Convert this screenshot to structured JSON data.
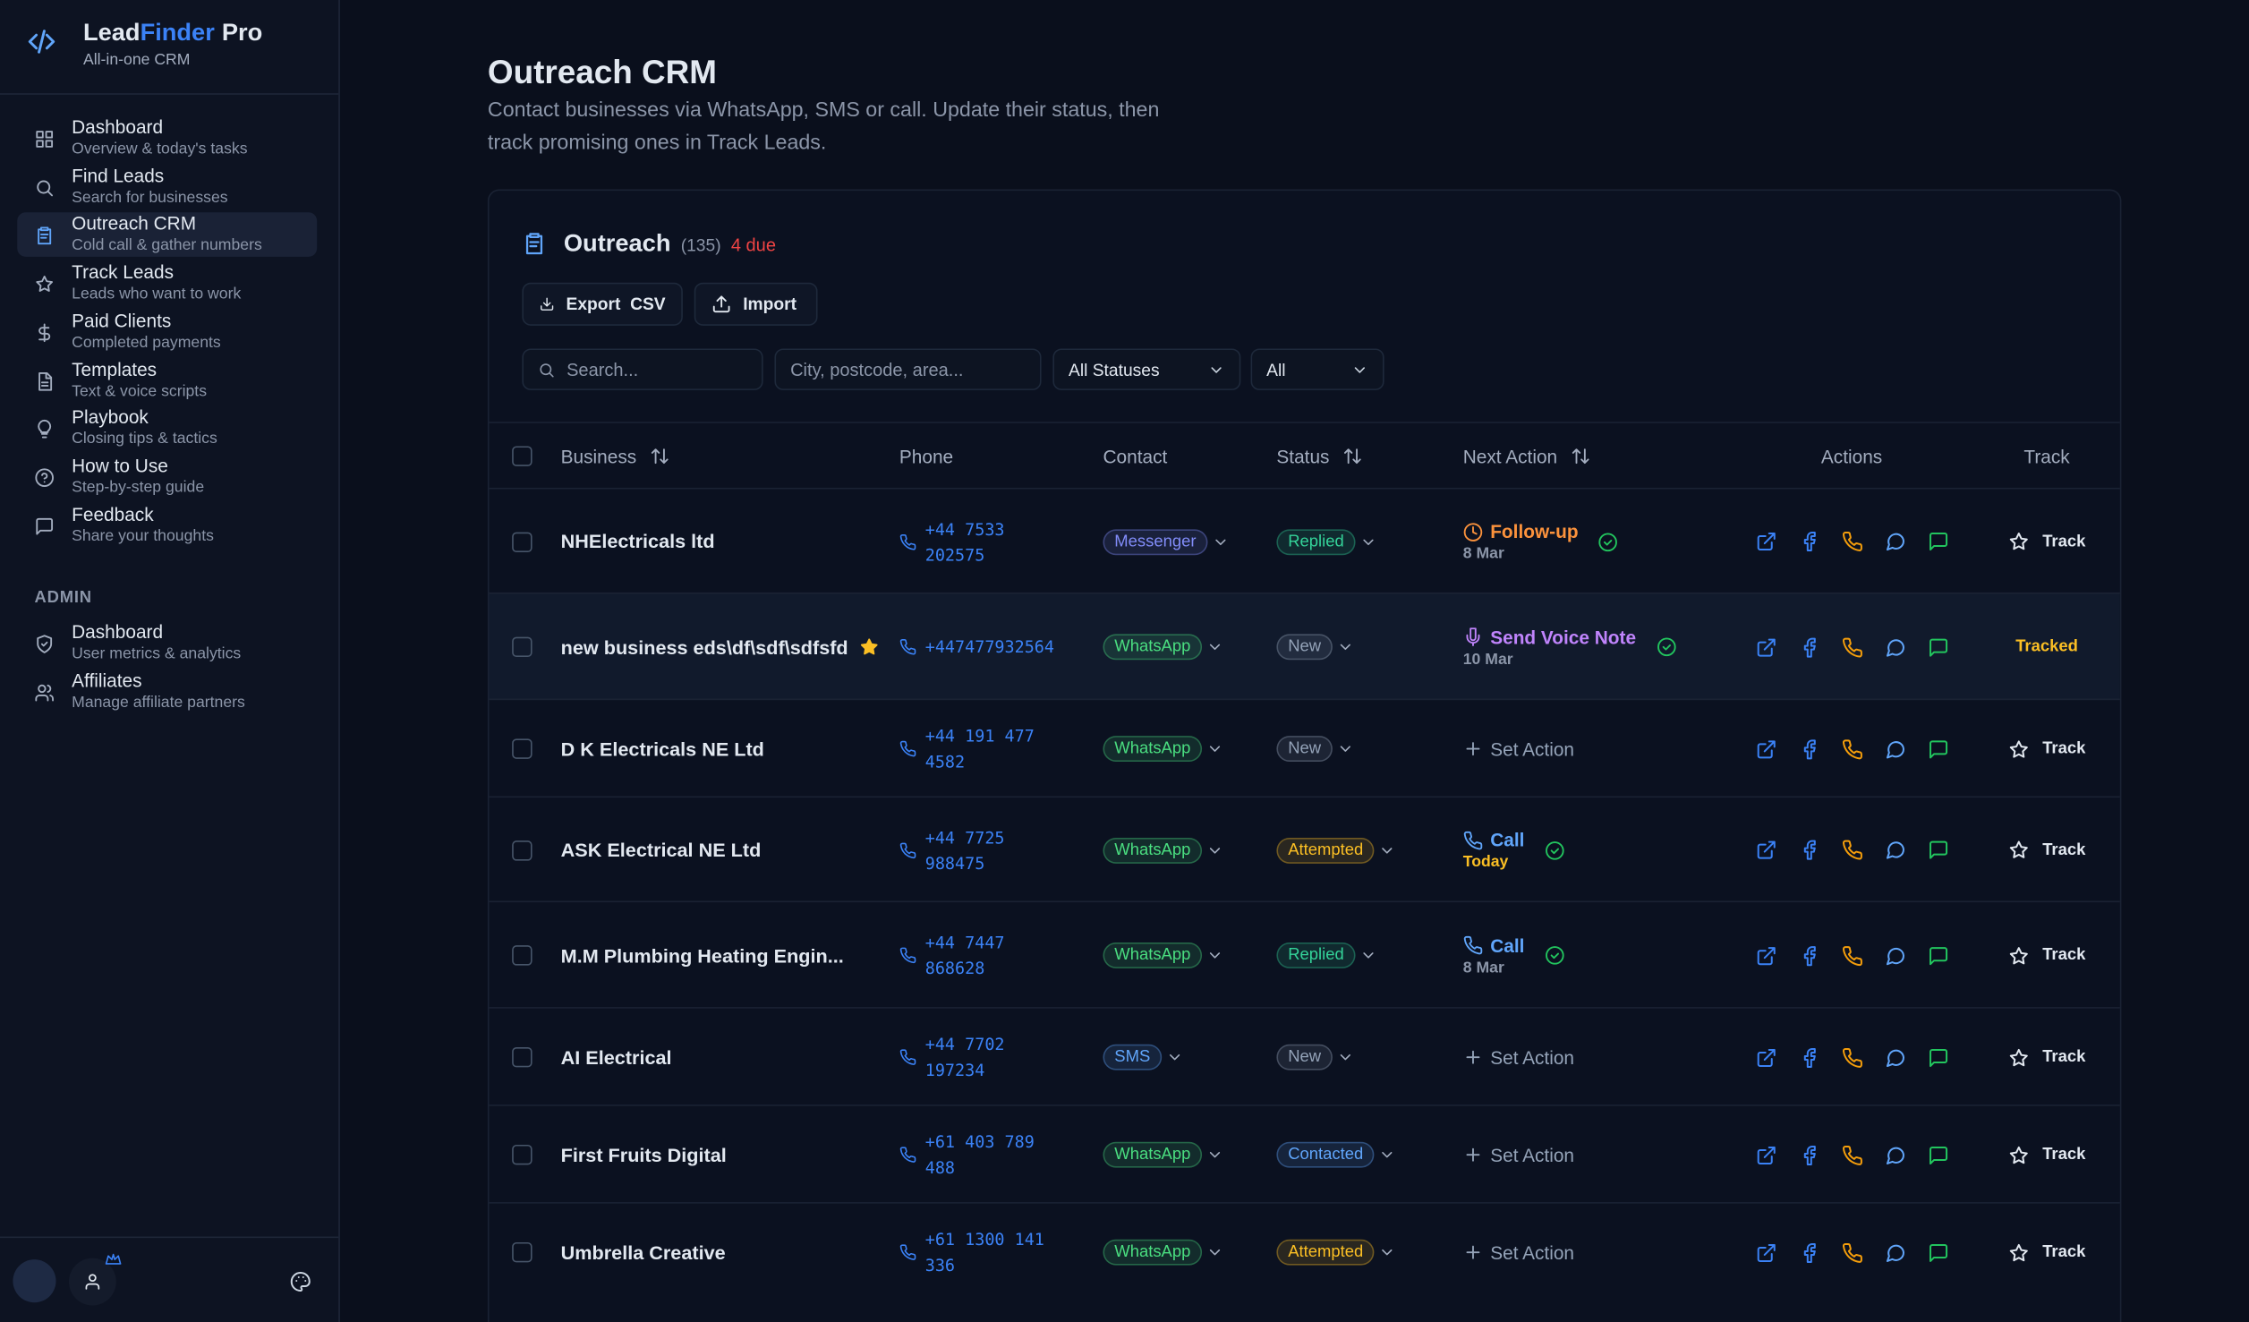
{
  "sidebar": {
    "brand": {
      "lead": "Lead",
      "finder": "Finder",
      "pro": "Pro",
      "tagline": "All-in-one CRM"
    },
    "nav": [
      {
        "label": "Dashboard",
        "sub": "Overview & today's tasks"
      },
      {
        "label": "Find Leads",
        "sub": "Search for businesses"
      },
      {
        "label": "Outreach CRM",
        "sub": "Cold call & gather numbers",
        "active": true
      },
      {
        "label": "Track Leads",
        "sub": "Leads who want to work"
      },
      {
        "label": "Paid Clients",
        "sub": "Completed payments"
      },
      {
        "label": "Templates",
        "sub": "Text & voice scripts"
      },
      {
        "label": "Playbook",
        "sub": "Closing tips & tactics"
      },
      {
        "label": "How to Use",
        "sub": "Step-by-step guide"
      },
      {
        "label": "Feedback",
        "sub": "Share your thoughts"
      }
    ],
    "admin_heading": "ADMIN",
    "admin": [
      {
        "label": "Dashboard",
        "sub": "User metrics & analytics"
      },
      {
        "label": "Affiliates",
        "sub": "Manage affiliate partners"
      }
    ]
  },
  "header": {
    "title": "Outreach CRM",
    "subtitle": "Contact businesses via WhatsApp, SMS or call. Update their status, then track promising ones in Track Leads."
  },
  "card": {
    "title": "Outreach",
    "count": "(135)",
    "due": "4 due",
    "buttons": [
      "Export  CSV",
      "Import"
    ],
    "filters": {
      "search": "Search...",
      "location": "City, postcode, area...",
      "status": "All Statuses",
      "type": "All"
    }
  },
  "table": {
    "columns": [
      {
        "label": "Business",
        "sortable": true
      },
      {
        "label": "Phone"
      },
      {
        "label": "Contact"
      },
      {
        "label": "Status",
        "sortable": true
      },
      {
        "label": "Next Action",
        "sortable": true
      },
      {
        "label": "Actions"
      },
      {
        "label": "Track"
      }
    ],
    "rows": [
      {
        "business": "NHElectricals ltd",
        "phone": "+44 7533 202575",
        "contact": {
          "label": "Messenger",
          "color": "#818cf8"
        },
        "status": {
          "label": "Replied",
          "color": "#34d399"
        },
        "next": {
          "label": "Follow-up",
          "date": "8 Mar",
          "color": "#fb923c",
          "icon": "clock",
          "done": true
        },
        "track": "Track"
      },
      {
        "business": "new business eds\\df\\sdf\\sdfsfd",
        "phone": "+447477932564",
        "contact": {
          "label": "WhatsApp",
          "color": "#4ade80"
        },
        "status": {
          "label": "New",
          "color": "#94a3b8"
        },
        "next": {
          "label": "Send Voice Note",
          "date": "10 Mar",
          "color": "#c084fc",
          "icon": "mic",
          "done": true
        },
        "track": "Tracked",
        "starred": true,
        "highlight": true
      },
      {
        "business": "D K Electricals NE Ltd",
        "phone": "+44 191 477 4582",
        "contact": {
          "label": "WhatsApp",
          "color": "#4ade80"
        },
        "status": {
          "label": "New",
          "color": "#94a3b8"
        },
        "next": {
          "label": "Set Action",
          "color": "#94a3b8",
          "icon": "plus"
        },
        "track": "Track"
      },
      {
        "business": "ASK Electrical NE Ltd",
        "phone": "+44 7725 988475",
        "contact": {
          "label": "WhatsApp",
          "color": "#4ade80"
        },
        "status": {
          "label": "Attempted",
          "color": "#fbbf24"
        },
        "next": {
          "label": "Call",
          "date": "Today",
          "date_color": "#fbbf24",
          "color": "#60a5fa",
          "icon": "phone",
          "done": true
        },
        "track": "Track"
      },
      {
        "business": "M.M Plumbing Heating Engin...",
        "phone": "+44 7447 868628",
        "contact": {
          "label": "WhatsApp",
          "color": "#4ade80"
        },
        "status": {
          "label": "Replied",
          "color": "#34d399"
        },
        "next": {
          "label": "Call",
          "date": "8 Mar",
          "color": "#60a5fa",
          "icon": "phone",
          "done": true
        },
        "track": "Track"
      },
      {
        "business": "AI Electrical",
        "phone": "+44 7702 197234",
        "contact": {
          "label": "SMS",
          "color": "#60a5fa"
        },
        "status": {
          "label": "New",
          "color": "#94a3b8"
        },
        "next": {
          "label": "Set Action",
          "color": "#94a3b8",
          "icon": "plus"
        },
        "track": "Track"
      },
      {
        "business": "First Fruits Digital",
        "phone": "+61 403 789 488",
        "contact": {
          "label": "WhatsApp",
          "color": "#4ade80"
        },
        "status": {
          "label": "Contacted",
          "color": "#60a5fa"
        },
        "next": {
          "label": "Set Action",
          "color": "#94a3b8",
          "icon": "plus"
        },
        "track": "Track"
      },
      {
        "business": "Umbrella Creative",
        "phone": "+61 1300 141 336",
        "contact": {
          "label": "WhatsApp",
          "color": "#4ade80"
        },
        "status": {
          "label": "Attempted",
          "color": "#fbbf24"
        },
        "next": {
          "label": "Set Action",
          "color": "#94a3b8",
          "icon": "plus"
        },
        "track": "Track"
      }
    ]
  }
}
